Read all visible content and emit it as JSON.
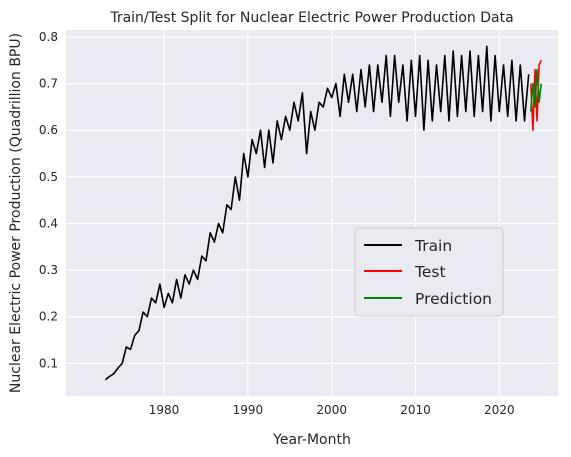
{
  "chart_data": {
    "type": "line",
    "title": "Train/Test Split for Nuclear Electric Power Production Data",
    "xlabel": "Year-Month",
    "ylabel": "Nuclear Electric Power Production (Quadrillion BPU)",
    "xlim": [
      1968.3,
      2027.0
    ],
    "ylim": [
      0.03,
      0.815
    ],
    "x_ticks": [
      1980,
      1990,
      2000,
      2010,
      2020
    ],
    "y_ticks": [
      0.1,
      0.2,
      0.3,
      0.4,
      0.5,
      0.6,
      0.7,
      0.8
    ],
    "grid": true,
    "legend_position": "center-right",
    "series": [
      {
        "name": "Train",
        "color": "#000000",
        "x": [
          1973.0,
          1973.5,
          1974.0,
          1974.5,
          1975.0,
          1975.5,
          1976.0,
          1976.5,
          1977.0,
          1977.5,
          1978.0,
          1978.5,
          1979.0,
          1979.5,
          1980.0,
          1980.5,
          1981.0,
          1981.5,
          1982.0,
          1982.5,
          1983.0,
          1983.5,
          1984.0,
          1984.5,
          1985.0,
          1985.5,
          1986.0,
          1986.5,
          1987.0,
          1987.5,
          1988.0,
          1988.5,
          1989.0,
          1989.5,
          1990.0,
          1990.5,
          1991.0,
          1991.5,
          1992.0,
          1992.5,
          1993.0,
          1993.5,
          1994.0,
          1994.5,
          1995.0,
          1995.5,
          1996.0,
          1996.5,
          1997.0,
          1997.5,
          1998.0,
          1998.5,
          1999.0,
          1999.5,
          2000.0,
          2000.5,
          2001.0,
          2001.5,
          2002.0,
          2002.5,
          2003.0,
          2003.5,
          2004.0,
          2004.5,
          2005.0,
          2005.5,
          2006.0,
          2006.5,
          2007.0,
          2007.5,
          2008.0,
          2008.5,
          2009.0,
          2009.5,
          2010.0,
          2010.5,
          2011.0,
          2011.5,
          2012.0,
          2012.5,
          2013.0,
          2013.5,
          2014.0,
          2014.5,
          2015.0,
          2015.5,
          2016.0,
          2016.5,
          2017.0,
          2017.5,
          2018.0,
          2018.5,
          2019.0,
          2019.5,
          2020.0,
          2020.5,
          2021.0,
          2021.5,
          2022.0,
          2022.5,
          2023.0,
          2023.5
        ],
        "values": [
          0.065,
          0.072,
          0.078,
          0.09,
          0.1,
          0.135,
          0.13,
          0.16,
          0.17,
          0.21,
          0.2,
          0.24,
          0.23,
          0.27,
          0.22,
          0.25,
          0.23,
          0.28,
          0.24,
          0.29,
          0.27,
          0.3,
          0.28,
          0.33,
          0.32,
          0.38,
          0.36,
          0.4,
          0.38,
          0.44,
          0.43,
          0.5,
          0.45,
          0.55,
          0.5,
          0.58,
          0.55,
          0.6,
          0.52,
          0.6,
          0.53,
          0.62,
          0.58,
          0.63,
          0.6,
          0.66,
          0.62,
          0.68,
          0.55,
          0.64,
          0.6,
          0.66,
          0.65,
          0.69,
          0.67,
          0.7,
          0.63,
          0.72,
          0.66,
          0.72,
          0.64,
          0.73,
          0.65,
          0.74,
          0.64,
          0.74,
          0.66,
          0.76,
          0.63,
          0.76,
          0.66,
          0.74,
          0.62,
          0.75,
          0.63,
          0.76,
          0.6,
          0.75,
          0.62,
          0.74,
          0.64,
          0.76,
          0.62,
          0.77,
          0.63,
          0.76,
          0.64,
          0.77,
          0.63,
          0.76,
          0.64,
          0.78,
          0.62,
          0.76,
          0.64,
          0.74,
          0.63,
          0.75,
          0.62,
          0.74,
          0.62,
          0.72
        ]
      },
      {
        "name": "Test",
        "color": "#ff0000",
        "x": [
          2023.75,
          2024.0,
          2024.25,
          2024.5,
          2024.75,
          2025.0
        ],
        "values": [
          0.7,
          0.6,
          0.73,
          0.62,
          0.74,
          0.75
        ]
      },
      {
        "name": "Prediction",
        "color": "#008000",
        "x": [
          2023.75,
          2024.0,
          2024.25,
          2024.5,
          2024.75,
          2025.0
        ],
        "values": [
          0.64,
          0.7,
          0.65,
          0.73,
          0.66,
          0.7
        ]
      }
    ]
  }
}
